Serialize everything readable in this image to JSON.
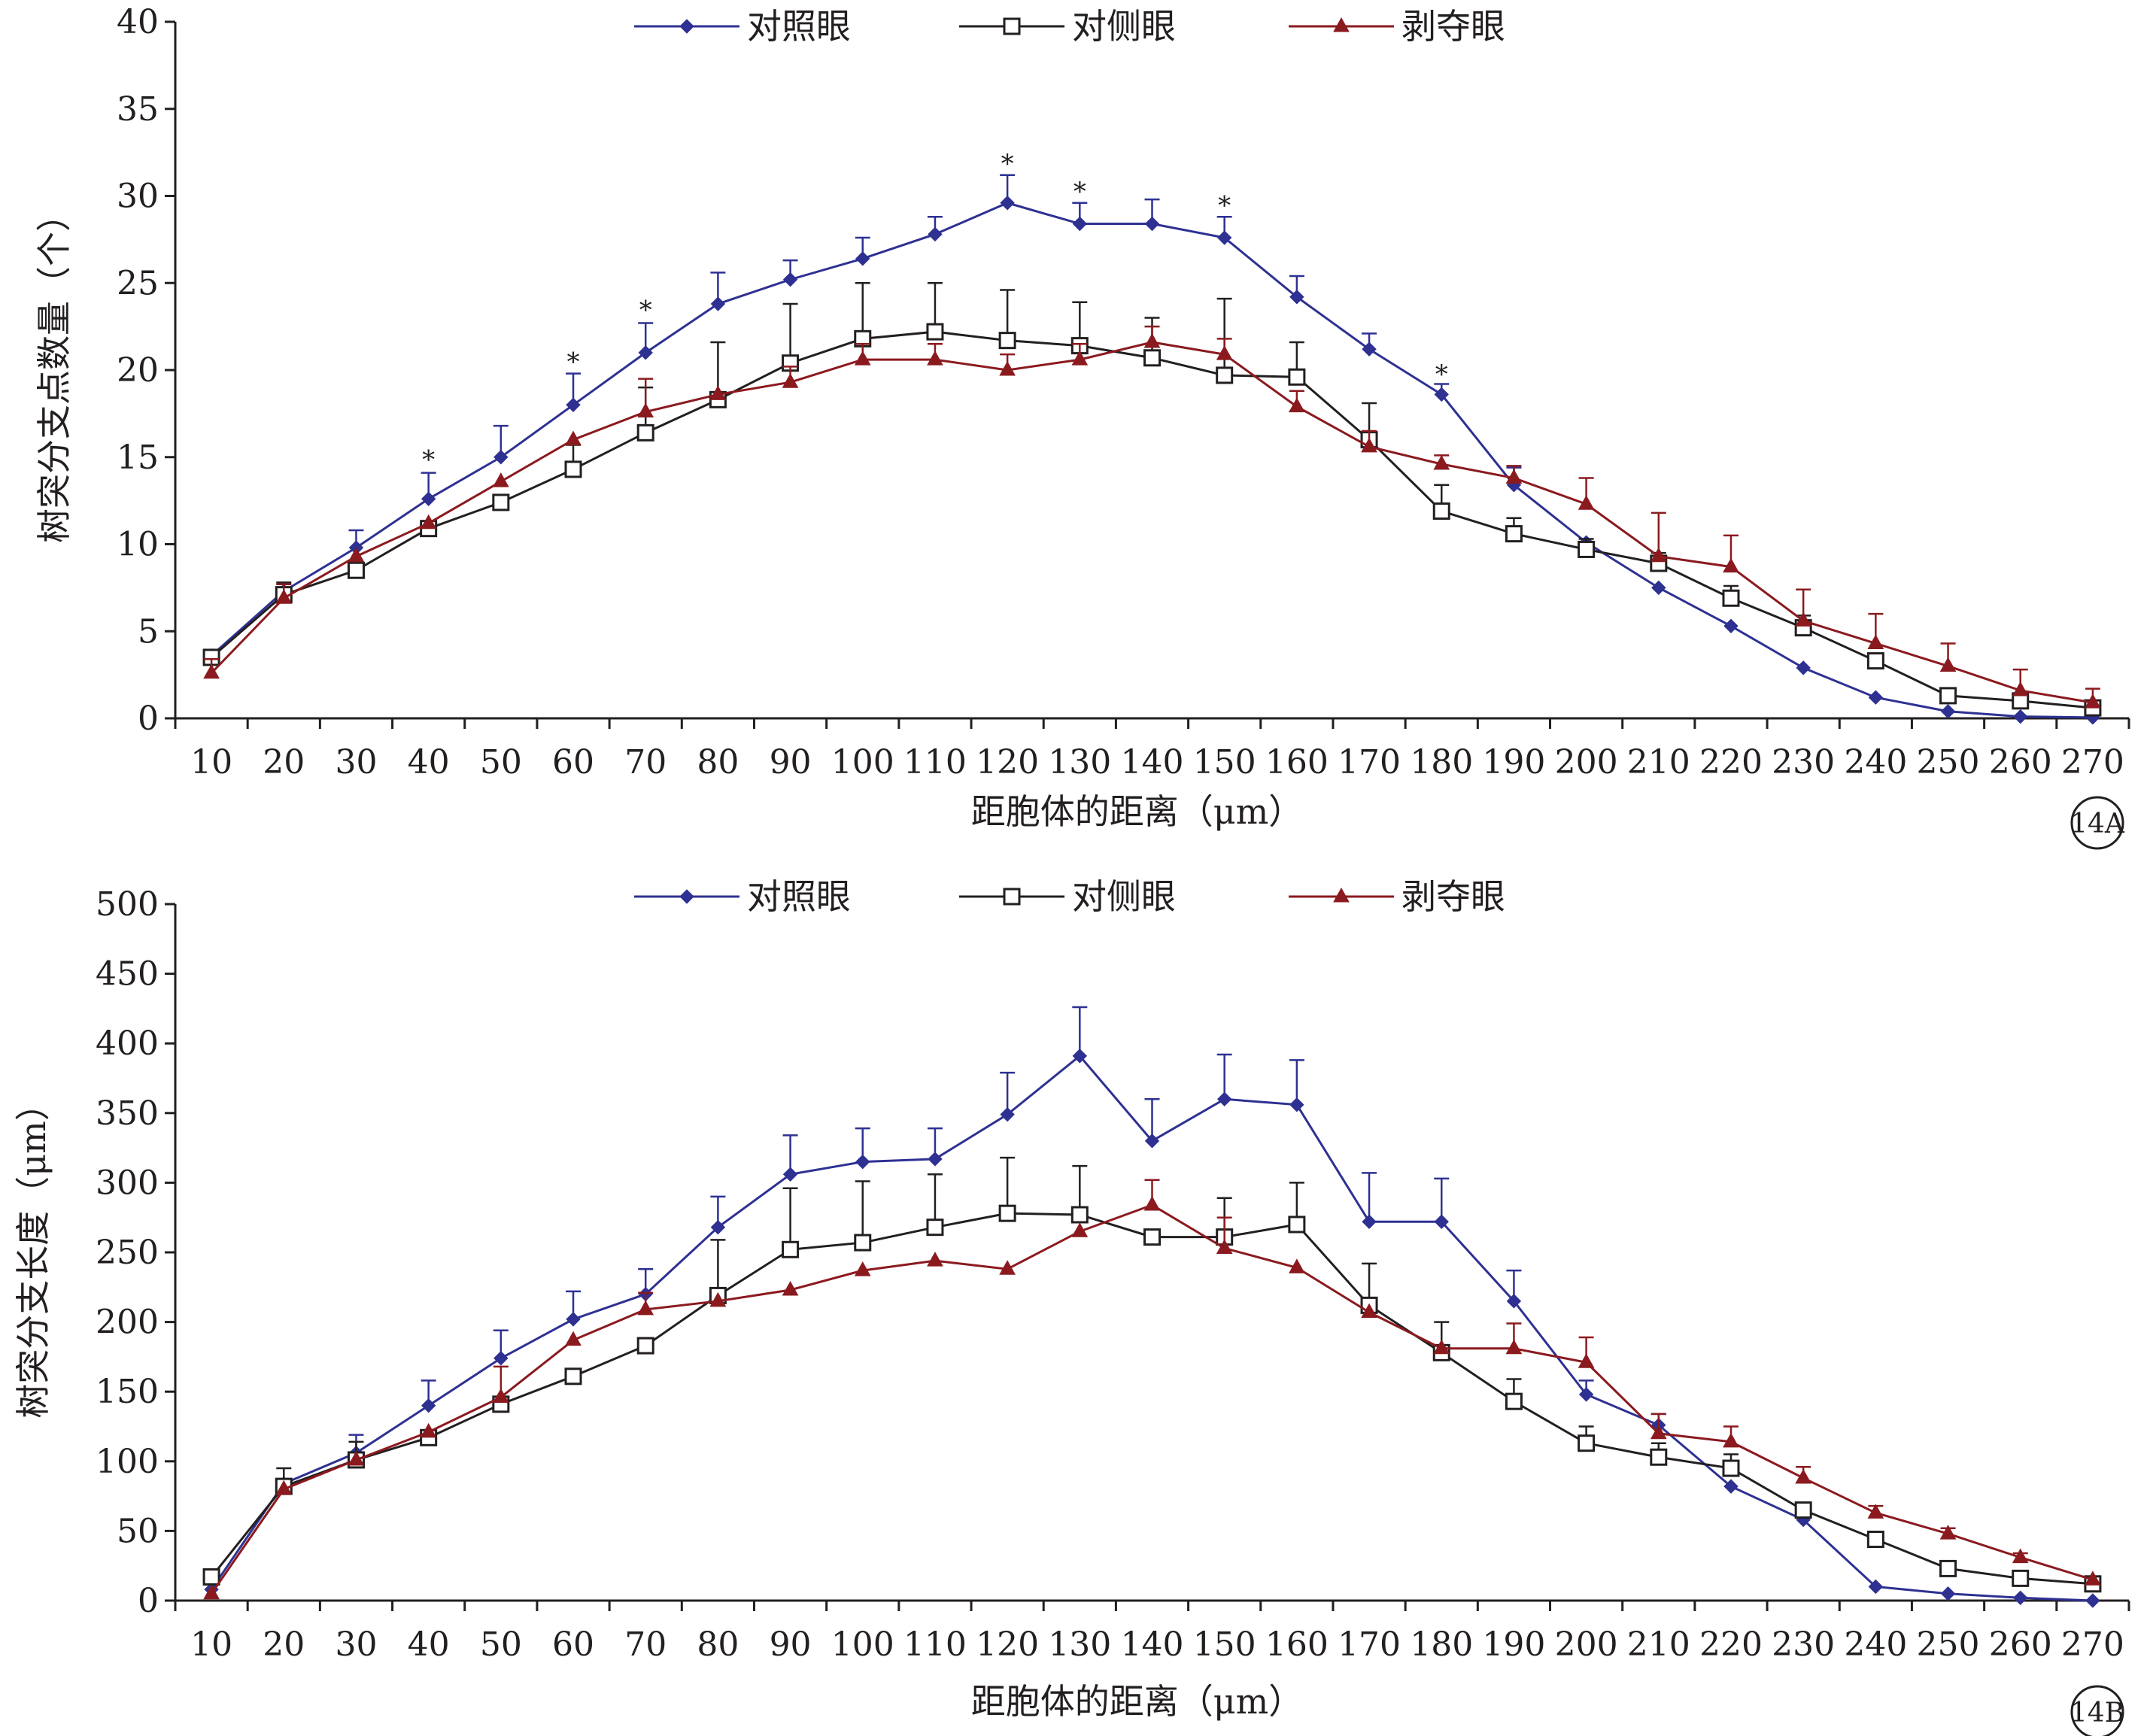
{
  "colors": {
    "control": "#2e3192",
    "contralateral": "#231f20",
    "deprived": "#8b1a1f",
    "axis": "#231f20"
  },
  "chart_data": [
    {
      "id": "14A",
      "type": "line",
      "panel_label": "14A",
      "ylabel": "树突分支点数量（个）",
      "xlabel": "距胞体的距离（μm）",
      "ylim": [
        0,
        40
      ],
      "yticks": [
        0,
        5,
        10,
        15,
        20,
        25,
        30,
        35,
        40
      ],
      "categories": [
        "10",
        "20",
        "30",
        "40",
        "50",
        "60",
        "70",
        "80",
        "90",
        "100",
        "110",
        "120",
        "130",
        "140",
        "150",
        "160",
        "170",
        "180",
        "190",
        "200",
        "210",
        "220",
        "230",
        "240",
        "250",
        "260",
        "270"
      ],
      "legend": {
        "position": "top-center"
      },
      "series": [
        {
          "name": "对照眼",
          "color_key": "control",
          "marker": "diamond",
          "values": [
            3.6,
            7.3,
            9.8,
            12.6,
            15.0,
            18.0,
            21.0,
            23.8,
            25.2,
            26.4,
            27.8,
            29.6,
            28.4,
            28.4,
            27.6,
            24.2,
            21.2,
            18.6,
            13.4,
            10.1,
            7.5,
            5.3,
            2.9,
            1.2,
            0.4,
            0.1,
            0.05
          ],
          "errors": [
            null,
            null,
            1.0,
            1.5,
            1.8,
            1.8,
            1.7,
            1.8,
            1.1,
            1.2,
            1.0,
            1.6,
            1.2,
            1.4,
            1.2,
            1.2,
            0.9,
            0.6,
            1.0,
            null,
            null,
            null,
            null,
            null,
            null,
            null,
            null
          ]
        },
        {
          "name": "对侧眼",
          "color_key": "contralateral",
          "marker": "square",
          "values": [
            3.5,
            7.1,
            8.5,
            10.9,
            12.4,
            14.3,
            16.4,
            18.3,
            20.4,
            21.8,
            22.2,
            21.7,
            21.4,
            20.7,
            19.7,
            19.6,
            16.0,
            11.9,
            10.6,
            9.7,
            8.9,
            6.9,
            5.2,
            3.3,
            1.3,
            1.0,
            0.6
          ],
          "errors": [
            null,
            0.7,
            null,
            null,
            null,
            1.4,
            2.6,
            3.3,
            3.4,
            3.2,
            2.8,
            2.9,
            2.5,
            2.3,
            4.4,
            2.0,
            2.1,
            1.5,
            0.9,
            0.6,
            0.6,
            0.7,
            0.7,
            null,
            null,
            null,
            null
          ]
        },
        {
          "name": "剥夺眼",
          "color_key": "deprived",
          "marker": "triangle",
          "values": [
            2.6,
            6.9,
            9.3,
            11.2,
            13.6,
            16.0,
            17.6,
            18.6,
            19.3,
            20.6,
            20.6,
            20.0,
            20.6,
            21.6,
            20.9,
            17.9,
            15.6,
            14.6,
            13.8,
            12.3,
            9.3,
            8.7,
            5.6,
            4.3,
            3.0,
            1.6,
            0.9
          ],
          "errors": [
            0.8,
            0.8,
            null,
            null,
            null,
            null,
            1.9,
            null,
            0.9,
            0.9,
            0.9,
            0.9,
            0.9,
            0.9,
            0.9,
            0.9,
            0.9,
            0.5,
            0.7,
            1.5,
            2.5,
            1.8,
            1.8,
            1.7,
            1.3,
            1.2,
            0.8
          ]
        }
      ],
      "annotations": [
        {
          "text": "*",
          "category": "40",
          "value": 14.8
        },
        {
          "text": "*",
          "category": "60",
          "value": 20.4
        },
        {
          "text": "*",
          "category": "70",
          "value": 23.4
        },
        {
          "text": "*",
          "category": "120",
          "value": 31.8
        },
        {
          "text": "*",
          "category": "130",
          "value": 30.2
        },
        {
          "text": "*",
          "category": "150",
          "value": 29.4
        },
        {
          "text": "*",
          "category": "180",
          "value": 19.7
        }
      ]
    },
    {
      "id": "14B",
      "type": "line",
      "panel_label": "14B",
      "ylabel": "树突分支长度（μm）",
      "xlabel": "距胞体的距离（μm）",
      "ylim": [
        0,
        500
      ],
      "yticks": [
        0,
        50,
        100,
        150,
        200,
        250,
        300,
        350,
        400,
        450,
        500
      ],
      "categories": [
        "10",
        "20",
        "30",
        "40",
        "50",
        "60",
        "70",
        "80",
        "90",
        "100",
        "110",
        "120",
        "130",
        "140",
        "150",
        "160",
        "170",
        "180",
        "190",
        "200",
        "210",
        "220",
        "230",
        "240",
        "250",
        "260",
        "270"
      ],
      "legend": {
        "position": "top-center"
      },
      "series": [
        {
          "name": "对照眼",
          "color_key": "control",
          "marker": "diamond",
          "values": [
            8,
            84,
            106,
            140,
            174,
            202,
            220,
            268,
            306,
            315,
            317,
            349,
            391,
            330,
            360,
            356,
            272,
            272,
            215,
            148,
            126,
            82,
            58,
            10,
            5,
            2,
            0
          ],
          "errors": [
            null,
            null,
            13,
            18,
            20,
            20,
            18,
            22,
            28,
            24,
            22,
            30,
            35,
            30,
            32,
            32,
            35,
            31,
            22,
            10,
            8,
            null,
            null,
            null,
            null,
            null,
            null
          ]
        },
        {
          "name": "对侧眼",
          "color_key": "contralateral",
          "marker": "square",
          "values": [
            17,
            82,
            101,
            117,
            141,
            161,
            183,
            219,
            252,
            257,
            268,
            278,
            277,
            261,
            261,
            270,
            212,
            178,
            143,
            113,
            103,
            95,
            65,
            44,
            23,
            16,
            12
          ],
          "errors": [
            null,
            13,
            13,
            null,
            null,
            null,
            null,
            40,
            44,
            44,
            38,
            40,
            35,
            null,
            28,
            30,
            30,
            22,
            16,
            12,
            10,
            10,
            null,
            null,
            null,
            null,
            null
          ]
        },
        {
          "name": "剥夺眼",
          "color_key": "deprived",
          "marker": "triangle",
          "values": [
            5,
            80,
            101,
            121,
            146,
            187,
            209,
            215,
            223,
            237,
            244,
            238,
            265,
            284,
            253,
            239,
            207,
            181,
            181,
            171,
            120,
            114,
            88,
            63,
            48,
            31,
            15
          ],
          "errors": [
            null,
            null,
            null,
            null,
            22,
            null,
            12,
            null,
            null,
            null,
            null,
            null,
            null,
            18,
            22,
            null,
            null,
            null,
            18,
            18,
            14,
            11,
            8,
            5,
            4,
            3,
            null
          ]
        }
      ],
      "annotations": []
    }
  ]
}
